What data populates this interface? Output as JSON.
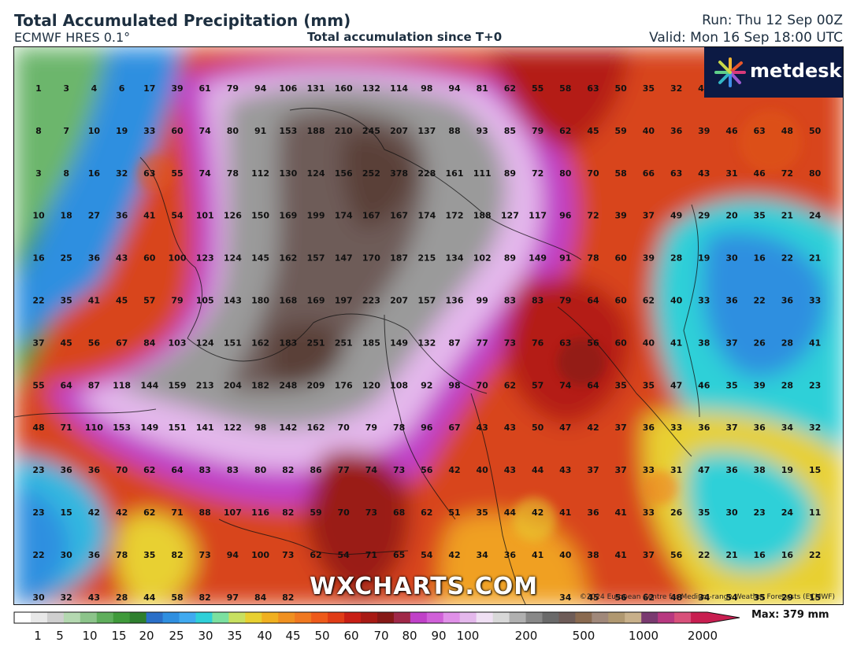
{
  "header": {
    "title": "Total Accumulated Precipitation (mm)",
    "model": "ECMWF HRES 0.1°",
    "subtitle": "Total accumulation since T+0",
    "run": "Run: Thu 12 Sep 00Z",
    "valid": "Valid: Mon 16 Sep 18:00 UTC"
  },
  "logo": {
    "text": "metdesk"
  },
  "watermark": "WXCHARTS.COM",
  "copyright": "©2024 European Centre for Medium-range Weather Forecasts (ECMWF)",
  "colorbar": {
    "ticks": [
      "1",
      "5",
      "10",
      "15",
      "20",
      "25",
      "30",
      "35",
      "40",
      "45",
      "50",
      "60",
      "70",
      "80",
      "90",
      "100",
      "200",
      "500",
      "1000",
      "2000"
    ],
    "max_label": "Max: 379 mm"
  },
  "grid": {
    "rows": [
      [
        "1",
        "3",
        "4",
        "6",
        "17",
        "39",
        "61",
        "79",
        "94",
        "106",
        "131",
        "160",
        "132",
        "114",
        "98",
        "94",
        "81",
        "62",
        "55",
        "58",
        "63",
        "50",
        "35",
        "32",
        "40"
      ],
      [
        "8",
        "7",
        "10",
        "19",
        "33",
        "60",
        "74",
        "80",
        "91",
        "153",
        "188",
        "210",
        "245",
        "207",
        "137",
        "88",
        "93",
        "85",
        "79",
        "62",
        "45",
        "59",
        "40",
        "36",
        "39",
        "46",
        "63",
        "48",
        "50"
      ],
      [
        "3",
        "8",
        "16",
        "32",
        "63",
        "55",
        "74",
        "78",
        "112",
        "130",
        "124",
        "156",
        "252",
        "378",
        "228",
        "161",
        "111",
        "89",
        "72",
        "80",
        "70",
        "58",
        "66",
        "63",
        "43",
        "31",
        "46",
        "72",
        "80"
      ],
      [
        "10",
        "18",
        "27",
        "36",
        "41",
        "54",
        "101",
        "126",
        "150",
        "169",
        "199",
        "174",
        "167",
        "167",
        "174",
        "172",
        "188",
        "127",
        "117",
        "96",
        "72",
        "39",
        "37",
        "49",
        "29",
        "20",
        "35",
        "21",
        "24"
      ],
      [
        "16",
        "25",
        "36",
        "43",
        "60",
        "100",
        "123",
        "124",
        "145",
        "162",
        "157",
        "147",
        "170",
        "187",
        "215",
        "134",
        "102",
        "89",
        "149",
        "91",
        "78",
        "60",
        "39",
        "28",
        "19",
        "30",
        "16",
        "22",
        "21"
      ],
      [
        "22",
        "35",
        "41",
        "45",
        "57",
        "79",
        "105",
        "143",
        "180",
        "168",
        "169",
        "197",
        "223",
        "207",
        "157",
        "136",
        "99",
        "83",
        "83",
        "79",
        "64",
        "60",
        "62",
        "40",
        "33",
        "36",
        "22",
        "36",
        "33"
      ],
      [
        "37",
        "45",
        "56",
        "67",
        "84",
        "103",
        "124",
        "151",
        "162",
        "183",
        "251",
        "251",
        "185",
        "149",
        "132",
        "87",
        "77",
        "73",
        "76",
        "63",
        "56",
        "60",
        "40",
        "41",
        "38",
        "37",
        "26",
        "28",
        "41"
      ],
      [
        "55",
        "64",
        "87",
        "118",
        "144",
        "159",
        "213",
        "204",
        "182",
        "248",
        "209",
        "176",
        "120",
        "108",
        "92",
        "98",
        "70",
        "62",
        "57",
        "74",
        "64",
        "35",
        "35",
        "47",
        "46",
        "35",
        "39",
        "28",
        "23"
      ],
      [
        "48",
        "71",
        "110",
        "153",
        "149",
        "151",
        "141",
        "122",
        "98",
        "142",
        "162",
        "70",
        "79",
        "78",
        "96",
        "67",
        "43",
        "43",
        "50",
        "47",
        "42",
        "37",
        "36",
        "33",
        "36",
        "37",
        "36",
        "34",
        "32"
      ],
      [
        "23",
        "36",
        "36",
        "70",
        "62",
        "64",
        "83",
        "83",
        "80",
        "82",
        "86",
        "77",
        "74",
        "73",
        "56",
        "42",
        "40",
        "43",
        "44",
        "43",
        "37",
        "37",
        "33",
        "31",
        "47",
        "36",
        "38",
        "19",
        "15"
      ],
      [
        "23",
        "15",
        "42",
        "42",
        "62",
        "71",
        "88",
        "107",
        "116",
        "82",
        "59",
        "70",
        "73",
        "68",
        "62",
        "51",
        "35",
        "44",
        "42",
        "41",
        "36",
        "41",
        "33",
        "26",
        "35",
        "30",
        "23",
        "24",
        "11"
      ],
      [
        "22",
        "30",
        "36",
        "78",
        "35",
        "82",
        "73",
        "94",
        "100",
        "73",
        "62",
        "54",
        "71",
        "65",
        "54",
        "42",
        "34",
        "36",
        "41",
        "40",
        "38",
        "41",
        "37",
        "56",
        "22",
        "21",
        "16",
        "16",
        "22"
      ],
      [
        "30",
        "32",
        "43",
        "28",
        "44",
        "58",
        "82",
        "97",
        "84",
        "82",
        "",
        "",
        "",
        "",
        "",
        "",
        "",
        "",
        "",
        "34",
        "45",
        "56",
        "62",
        "48",
        "34",
        "54",
        "35",
        "29",
        "15"
      ]
    ]
  },
  "colors": {
    "bg_green": "#3f9a3a",
    "blue": "#2f8fe0",
    "cyan": "#2fd0d8",
    "yellow": "#e8d030",
    "orange": "#f07820",
    "red": "#c81e14",
    "darkred": "#7a1a16",
    "magenta": "#c040c8",
    "lavender": "#e4b8ec",
    "gray": "#9a9a9a",
    "darkbrown": "#5a4038"
  }
}
